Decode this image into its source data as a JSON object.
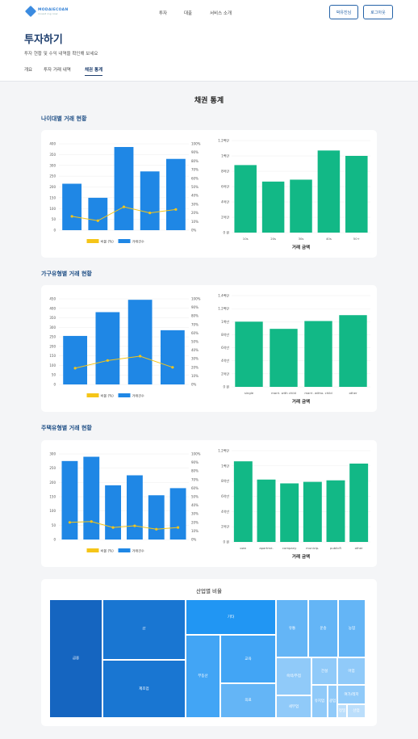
{
  "header": {
    "brand": "MODAIECOAN",
    "brand_sub": "invest ing now",
    "nav": [
      "투자",
      "대출",
      "서비스 소개"
    ],
    "mypage": "박유진님",
    "logout": "로그아웃"
  },
  "page": {
    "title": "투자하기",
    "subtitle": "투자 현황 및 수익 내역을 확인해 보세요",
    "tabs": [
      "개요",
      "투자 거래 내역",
      "채권 통계"
    ],
    "active_tab": 2,
    "section_title": "채권 통계"
  },
  "colors": {
    "bar": "#1f87e5",
    "line": "#f5c518",
    "amount": "#12b886",
    "brand": "#1f3f6e"
  },
  "legend": {
    "ratio": "비율 (%)",
    "count": "거래건수"
  },
  "amount_xlabel": "거래 금액",
  "groups": [
    {
      "title": "나이대별 거래 현황"
    },
    {
      "title": "가구유형별 거래 현황"
    },
    {
      "title": "주택유형별 거래 현황"
    }
  ],
  "treemap": {
    "title": "산업별 비율",
    "cells": [
      {
        "label": "금융",
        "color": "#1565c0"
      },
      {
        "label": "IT",
        "color": "#1976d2"
      },
      {
        "label": "제조업",
        "color": "#1976d2"
      },
      {
        "label": "기타",
        "color": "#2196f3"
      },
      {
        "label": "부동산",
        "color": "#42a5f5"
      },
      {
        "label": "교육",
        "color": "#42a5f5"
      },
      {
        "label": "의료",
        "color": "#64b5f6"
      },
      {
        "label": "유통",
        "color": "#64b5f6"
      },
      {
        "label": "운송",
        "color": "#64b5f6"
      },
      {
        "label": "농업",
        "color": "#64b5f6"
      },
      {
        "label": "숙박/주점",
        "color": "#90caf9"
      },
      {
        "label": "건설",
        "color": "#90caf9"
      },
      {
        "label": "어업",
        "color": "#90caf9"
      },
      {
        "label": "여가/레저",
        "color": "#90caf9"
      },
      {
        "label": "세무업",
        "color": "#90caf9"
      },
      {
        "label": "유지업",
        "color": "#90caf9"
      },
      {
        "label": "광업",
        "color": "#90caf9"
      },
      {
        "label": "정밀",
        "color": "#bbdefb"
      },
      {
        "label": "산업",
        "color": "#bbdefb"
      }
    ]
  },
  "chart_data": [
    {
      "type": "bar",
      "title": "나이대별 거래 현황",
      "categories": [
        "",
        "",
        "",
        "",
        ""
      ],
      "series": [
        {
          "name": "거래건수",
          "kind": "bar",
          "axis": "left",
          "values": [
            215,
            150,
            385,
            272,
            330
          ]
        },
        {
          "name": "비율 (%)",
          "kind": "line",
          "axis": "right",
          "values": [
            16,
            11,
            27,
            20,
            24
          ]
        }
      ],
      "ylim": [
        0,
        400
      ],
      "y_ticks": [
        0,
        50,
        100,
        150,
        200,
        250,
        300,
        350,
        400
      ],
      "y2lim": [
        0,
        100
      ],
      "y2_ticks": [
        "0%",
        "10%",
        "20%",
        "30%",
        "40%",
        "50%",
        "60%",
        "70%",
        "80%",
        "90%",
        "100%"
      ],
      "legend": "bottom"
    },
    {
      "type": "bar",
      "categories": [
        "10s",
        "20s",
        "30s",
        "40s",
        "50+"
      ],
      "values": [
        880000000,
        665000000,
        690000000,
        1070000000,
        1000000000
      ],
      "xlabel": "거래 금액",
      "ylim": [
        0,
        1200000000
      ],
      "y_ticks": [
        "0 원",
        "2억만",
        "4억만",
        "6억만",
        "8억만",
        "1백만",
        "1.2백만"
      ]
    },
    {
      "type": "bar",
      "title": "가구유형별 거래 현황",
      "categories": [
        "",
        "",
        "",
        ""
      ],
      "series": [
        {
          "name": "거래건수",
          "kind": "bar",
          "axis": "left",
          "values": [
            255,
            380,
            445,
            285
          ]
        },
        {
          "name": "비율 (%)",
          "kind": "line",
          "axis": "right",
          "values": [
            19,
            28,
            33,
            20
          ]
        }
      ],
      "ylim": [
        0,
        450
      ],
      "y_ticks": [
        0,
        50,
        100,
        150,
        200,
        250,
        300,
        350,
        400,
        450
      ],
      "y2lim": [
        0,
        100
      ],
      "y2_ticks": [
        "0%",
        "10%",
        "20%",
        "30%",
        "40%",
        "50%",
        "60%",
        "70%",
        "80%",
        "90%",
        "100%"
      ],
      "legend": "bottom"
    },
    {
      "type": "bar",
      "categories": [
        "single",
        "marri. with child",
        "marri. witho. child",
        "other"
      ],
      "values": [
        1000000000,
        890000000,
        1010000000,
        1100000000
      ],
      "xlabel": "거래 금액",
      "ylim": [
        0,
        1400000000
      ],
      "y_ticks": [
        "0 원",
        "2억만",
        "4억만",
        "6억만",
        "8억만",
        "1백만",
        "1.2백만",
        "1.4백만"
      ]
    },
    {
      "type": "bar",
      "title": "주택유형별 거래 현황",
      "categories": [
        "",
        "",
        "",
        "",
        "",
        ""
      ],
      "series": [
        {
          "name": "거래건수",
          "kind": "bar",
          "axis": "left",
          "values": [
            275,
            290,
            190,
            225,
            155,
            180
          ]
        },
        {
          "name": "비율 (%)",
          "kind": "line",
          "axis": "right",
          "values": [
            20,
            21,
            14,
            16,
            12,
            14
          ]
        }
      ],
      "ylim": [
        0,
        300
      ],
      "y_ticks": [
        0,
        50,
        100,
        150,
        200,
        250,
        300
      ],
      "y2lim": [
        0,
        100
      ],
      "y2_ticks": [
        "0%",
        "10%",
        "20%",
        "30%",
        "40%",
        "50%",
        "60%",
        "70%",
        "80%",
        "90%",
        "100%"
      ],
      "legend": "bottom"
    },
    {
      "type": "bar",
      "categories": [
        "own",
        "apartme.",
        "company",
        "municip.",
        "publicR",
        "other"
      ],
      "values": [
        1060000000,
        820000000,
        770000000,
        790000000,
        810000000,
        1030000000
      ],
      "xlabel": "거래 금액",
      "ylim": [
        0,
        1200000000
      ],
      "y_ticks": [
        "0 원",
        "2억만",
        "4억만",
        "6억만",
        "8억만",
        "1백만",
        "1.2백만"
      ]
    }
  ]
}
